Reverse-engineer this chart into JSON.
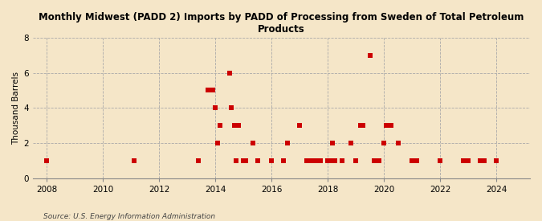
{
  "title": "Monthly Midwest (PADD 2) Imports by PADD of Processing from Sweden of Total Petroleum\nProducts",
  "ylabel": "Thousand Barrels",
  "source": "Source: U.S. Energy Information Administration",
  "background_color": "#f5e6c8",
  "plot_background": "#f5e6c8",
  "marker_color": "#cc0000",
  "marker_size": 4,
  "ylim": [
    0,
    8
  ],
  "yticks": [
    0,
    2,
    4,
    6,
    8
  ],
  "xlim": [
    2007.5,
    2025.2
  ],
  "xticks": [
    2008,
    2010,
    2012,
    2014,
    2016,
    2018,
    2020,
    2022,
    2024
  ],
  "data_points": [
    [
      2008.0,
      1
    ],
    [
      2011.1,
      1
    ],
    [
      2013.4,
      1
    ],
    [
      2013.75,
      5
    ],
    [
      2013.92,
      5
    ],
    [
      2014.0,
      4
    ],
    [
      2014.08,
      2
    ],
    [
      2014.17,
      3
    ],
    [
      2014.5,
      6
    ],
    [
      2014.58,
      4
    ],
    [
      2014.67,
      3
    ],
    [
      2014.75,
      1
    ],
    [
      2014.83,
      3
    ],
    [
      2015.0,
      1
    ],
    [
      2015.08,
      1
    ],
    [
      2015.33,
      2
    ],
    [
      2015.5,
      1
    ],
    [
      2016.0,
      1
    ],
    [
      2016.42,
      1
    ],
    [
      2016.58,
      2
    ],
    [
      2017.0,
      3
    ],
    [
      2017.25,
      1
    ],
    [
      2017.42,
      1
    ],
    [
      2017.58,
      1
    ],
    [
      2017.67,
      1
    ],
    [
      2017.75,
      1
    ],
    [
      2018.0,
      1
    ],
    [
      2018.08,
      1
    ],
    [
      2018.17,
      2
    ],
    [
      2018.25,
      1
    ],
    [
      2018.5,
      1
    ],
    [
      2018.83,
      2
    ],
    [
      2019.0,
      1
    ],
    [
      2019.17,
      3
    ],
    [
      2019.25,
      3
    ],
    [
      2019.5,
      7
    ],
    [
      2019.67,
      1
    ],
    [
      2019.83,
      1
    ],
    [
      2020.0,
      2
    ],
    [
      2020.08,
      3
    ],
    [
      2020.25,
      3
    ],
    [
      2020.5,
      2
    ],
    [
      2021.0,
      1
    ],
    [
      2021.17,
      1
    ],
    [
      2022.0,
      1
    ],
    [
      2022.83,
      1
    ],
    [
      2023.0,
      1
    ],
    [
      2023.42,
      1
    ],
    [
      2023.58,
      1
    ],
    [
      2024.0,
      1
    ]
  ]
}
